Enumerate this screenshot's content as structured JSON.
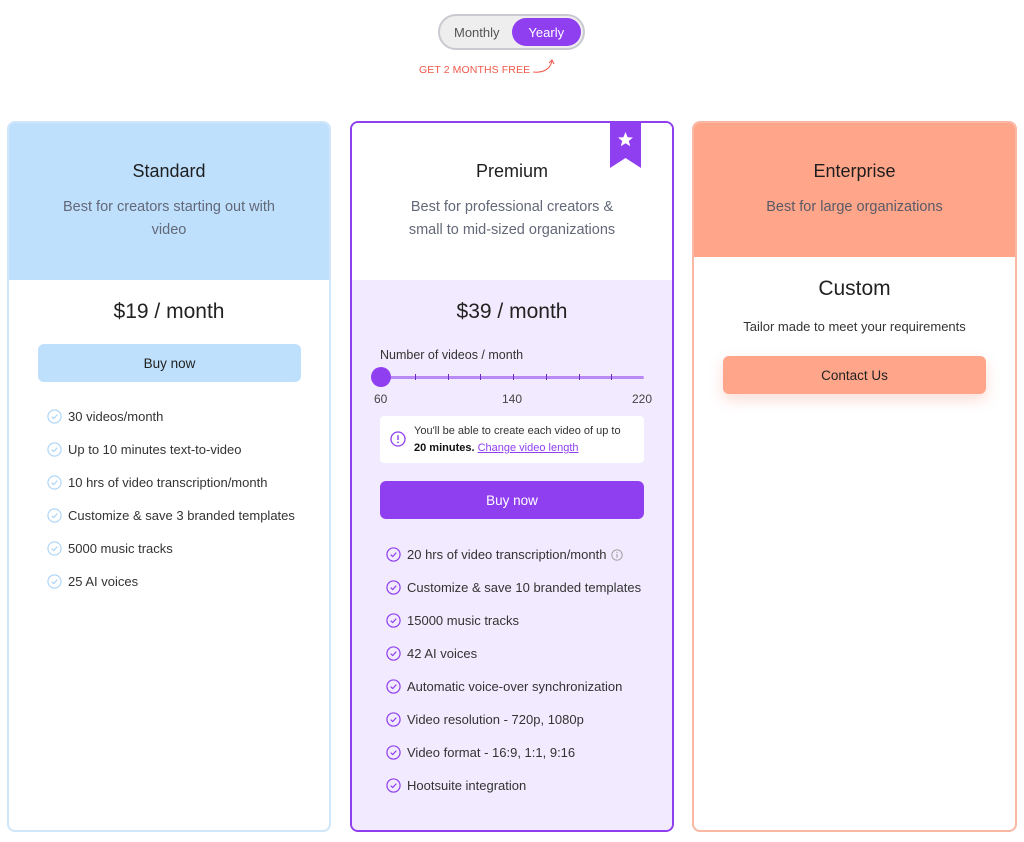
{
  "billing_toggle": {
    "options": [
      "Monthly",
      "Yearly"
    ],
    "selected": "Yearly",
    "promo": "GET 2 MONTHS FREE"
  },
  "colors": {
    "accent": "#8f3ff0",
    "standard": "#bfe0fd",
    "enterprise": "#ffa68a",
    "promo": "#f0594a"
  },
  "plans": {
    "standard": {
      "name": "Standard",
      "description": "Best for creators starting out with video",
      "price": "$19 / month",
      "button": "Buy now",
      "features": [
        "30 videos/month",
        "Up to 10 minutes text-to-video",
        "10 hrs of video transcription/month",
        "Customize & save 3 branded templates",
        "5000 music tracks",
        "25 AI voices"
      ]
    },
    "premium": {
      "name": "Premium",
      "description": "Best for professional creators & small to mid-sized organizations",
      "badge_icon": "star-icon",
      "price": "$39 / month",
      "slider": {
        "label": "Number of videos / month",
        "min": "60",
        "mid": "140",
        "max": "220",
        "value": 60
      },
      "info": {
        "text_before": "You'll be able to create each video of up to",
        "highlight": "20 minutes.",
        "link": "Change video length"
      },
      "button": "Buy now",
      "features": [
        "20 hrs of video transcription/month",
        "Customize & save 10 branded templates",
        "15000 music tracks",
        "42 AI voices",
        "Automatic voice-over synchronization",
        "Video resolution - 720p, 1080p",
        "Video format - 16:9, 1:1, 9:16",
        "Hootsuite integration"
      ]
    },
    "enterprise": {
      "name": "Enterprise",
      "description": "Best for large organizations",
      "price": "Custom",
      "subtitle": "Tailor made to meet your requirements",
      "button": "Contact Us"
    }
  }
}
